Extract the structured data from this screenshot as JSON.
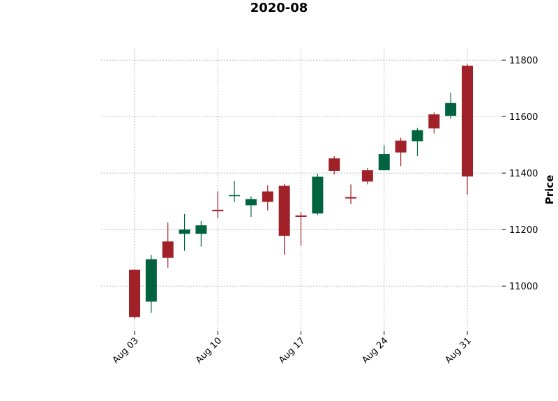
{
  "chart_data": {
    "type": "candlestick",
    "title": "2020-08",
    "ylabel": "Price",
    "ylim": [
      10840,
      11840
    ],
    "yticks": [
      11000,
      11200,
      11400,
      11600,
      11800
    ],
    "ytick_labels": [
      "11000",
      "11200",
      "11400",
      "11600",
      "11800"
    ],
    "xticks": [
      {
        "label": "Aug 03",
        "index": 0
      },
      {
        "label": "Aug 10",
        "index": 5
      },
      {
        "label": "Aug 17",
        "index": 10
      },
      {
        "label": "Aug 24",
        "index": 15
      },
      {
        "label": "Aug 31",
        "index": 20
      }
    ],
    "colors": {
      "up": "#006340",
      "down": "#a02128"
    },
    "grid": true,
    "candles": [
      {
        "date": "2020-08-03",
        "open": 11058,
        "high": 11058,
        "low": 10885,
        "close": 10890
      },
      {
        "date": "2020-08-04",
        "open": 10945,
        "high": 11110,
        "low": 10905,
        "close": 11095
      },
      {
        "date": "2020-08-05",
        "open": 11158,
        "high": 11225,
        "low": 11065,
        "close": 11100
      },
      {
        "date": "2020-08-06",
        "open": 11185,
        "high": 11255,
        "low": 11125,
        "close": 11200
      },
      {
        "date": "2020-08-07",
        "open": 11185,
        "high": 11230,
        "low": 11140,
        "close": 11215
      },
      {
        "date": "2020-08-10",
        "open": 11270,
        "high": 11335,
        "low": 11240,
        "close": 11265
      },
      {
        "date": "2020-08-11",
        "open": 11320,
        "high": 11372,
        "low": 11298,
        "close": 11322
      },
      {
        "date": "2020-08-12",
        "open": 11286,
        "high": 11318,
        "low": 11245,
        "close": 11308
      },
      {
        "date": "2020-08-13",
        "open": 11335,
        "high": 11357,
        "low": 11268,
        "close": 11298
      },
      {
        "date": "2020-08-14",
        "open": 11355,
        "high": 11362,
        "low": 11110,
        "close": 11178
      },
      {
        "date": "2020-08-17",
        "open": 11250,
        "high": 11262,
        "low": 11142,
        "close": 11245
      },
      {
        "date": "2020-08-18",
        "open": 11257,
        "high": 11398,
        "low": 11252,
        "close": 11387
      },
      {
        "date": "2020-08-19",
        "open": 11452,
        "high": 11460,
        "low": 11395,
        "close": 11408
      },
      {
        "date": "2020-08-20",
        "open": 11315,
        "high": 11360,
        "low": 11290,
        "close": 11310
      },
      {
        "date": "2020-08-21",
        "open": 11410,
        "high": 11418,
        "low": 11360,
        "close": 11370
      },
      {
        "date": "2020-08-24",
        "open": 11410,
        "high": 11498,
        "low": 11410,
        "close": 11467
      },
      {
        "date": "2020-08-25",
        "open": 11515,
        "high": 11525,
        "low": 11425,
        "close": 11473
      },
      {
        "date": "2020-08-26",
        "open": 11513,
        "high": 11560,
        "low": 11460,
        "close": 11552
      },
      {
        "date": "2020-08-27",
        "open": 11608,
        "high": 11615,
        "low": 11540,
        "close": 11558
      },
      {
        "date": "2020-08-28",
        "open": 11603,
        "high": 11685,
        "low": 11592,
        "close": 11648
      },
      {
        "date": "2020-08-31",
        "open": 11780,
        "high": 11785,
        "low": 11325,
        "close": 11388
      }
    ]
  }
}
